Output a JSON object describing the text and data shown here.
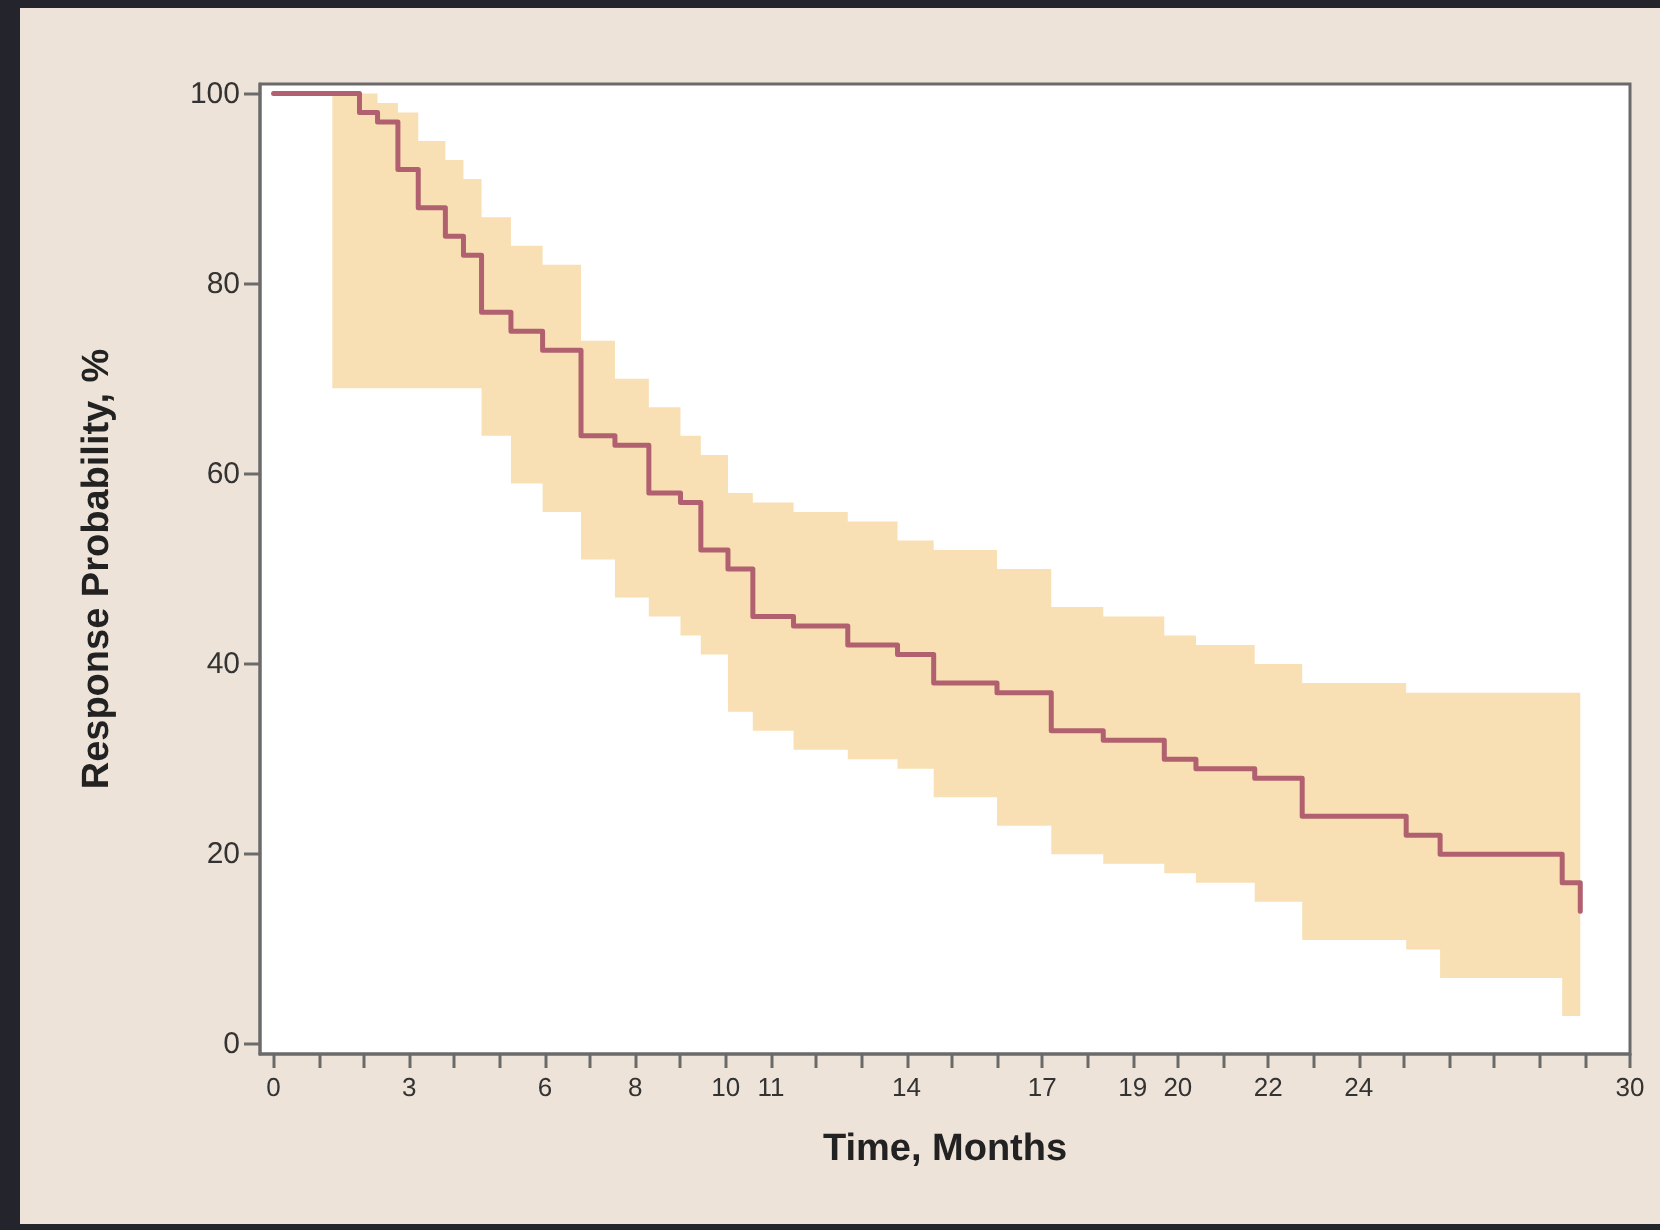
{
  "chart_data": {
    "type": "step",
    "xlabel": "Time, Months",
    "ylabel": "Response Probability, %",
    "x": [
      0,
      1.3,
      1.9,
      2.3,
      2.75,
      3.2,
      3.8,
      4.2,
      4.6,
      5.25,
      5.95,
      6.8,
      7.55,
      8.3,
      9.0,
      9.45,
      10.05,
      10.6,
      11.5,
      12.7,
      13.8,
      14.6,
      16.0,
      17.2,
      18.35,
      19.7,
      20.4,
      21.7,
      22.75,
      25.05,
      25.8,
      28.5,
      28.9
    ],
    "series": [
      {
        "color": "#b0606e",
        "values": [
          100,
          100,
          98,
          97,
          92,
          88,
          85,
          83,
          77,
          75,
          73,
          64,
          63,
          58,
          57,
          52,
          50,
          45,
          44,
          42,
          41,
          38,
          37,
          33,
          32,
          30,
          29,
          28,
          24,
          22,
          20,
          17,
          14
        ],
        "upper": [
          null,
          100,
          100,
          99,
          98,
          95,
          93,
          91,
          87,
          84,
          82,
          74,
          70,
          67,
          64,
          62,
          58,
          57,
          56,
          55,
          53,
          52,
          50,
          46,
          45,
          43,
          42,
          40,
          38,
          37,
          37,
          37,
          37
        ],
        "lower": [
          null,
          69,
          69,
          69,
          69,
          69,
          69,
          69,
          64,
          59,
          56,
          51,
          47,
          45,
          43,
          41,
          35,
          33,
          31,
          30,
          29,
          26,
          23,
          20,
          19,
          18,
          17,
          15,
          11,
          10,
          7,
          3,
          3
        ]
      }
    ],
    "xlim": [
      -0.3,
      30
    ],
    "ylim": [
      -1,
      101
    ],
    "xticks": [
      0,
      {
        "value": 1,
        "label": null
      },
      {
        "value": 2,
        "label": null
      },
      3,
      {
        "value": 4,
        "label": null
      },
      {
        "value": 5,
        "label": null
      },
      6,
      {
        "value": 7,
        "label": null
      },
      8,
      {
        "value": 9,
        "label": null
      },
      10,
      11,
      {
        "value": 12,
        "label": null
      },
      {
        "value": 13,
        "label": null
      },
      14,
      {
        "value": 15,
        "label": null
      },
      {
        "value": 16,
        "label": null
      },
      17,
      {
        "value": 18,
        "label": null
      },
      19,
      20,
      {
        "value": 21,
        "label": null
      },
      22,
      {
        "value": 23,
        "label": null
      },
      24,
      {
        "value": 25,
        "label": null
      },
      {
        "value": 26,
        "label": null
      },
      {
        "value": 27,
        "label": null
      },
      {
        "value": 28,
        "label": null
      },
      {
        "value": 29,
        "label": null
      },
      30
    ],
    "yticks": [
      0,
      20,
      40,
      60,
      80,
      100
    ],
    "grid": false,
    "marker": "none",
    "line_style": "solid"
  }
}
